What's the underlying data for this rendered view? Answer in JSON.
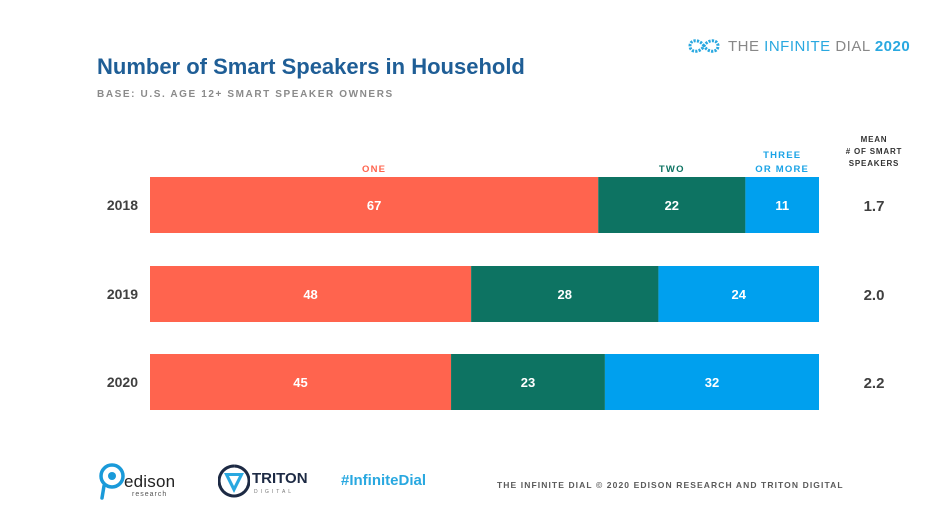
{
  "header": {
    "title": "Number of Smart Speakers in Household",
    "subtitle": "BASE: U.S. AGE 12+ SMART SPEAKER OWNERS",
    "brand": {
      "prefix": "THE ",
      "accent": "INFINITE",
      "suffix": " DIAL",
      "year": "2020"
    }
  },
  "chart_data": {
    "type": "bar",
    "orientation": "horizontal",
    "stacked": true,
    "categories": [
      "2018",
      "2019",
      "2020"
    ],
    "series": [
      {
        "name": "ONE",
        "values": [
          67,
          48,
          45
        ],
        "color": "#ff644e"
      },
      {
        "name": "TWO",
        "values": [
          22,
          28,
          23
        ],
        "color": "#0d7362"
      },
      {
        "name": "THREE OR MORE",
        "values": [
          11,
          24,
          32
        ],
        "color": "#00a0ee"
      }
    ],
    "series_labels": [
      {
        "lines": [
          "ONE"
        ],
        "color": "#ff644e"
      },
      {
        "lines": [
          "TWO"
        ],
        "color": "#0d7362"
      },
      {
        "lines": [
          "THREE",
          "OR MORE"
        ],
        "color": "#1aa3e6"
      }
    ],
    "mean_header": [
      "MEAN",
      "# OF SMART",
      "SPEAKERS"
    ],
    "mean_values": [
      "1.7",
      "2.0",
      "2.2"
    ],
    "xlim": [
      0,
      100
    ],
    "grid": false,
    "legend": "labels above bars"
  },
  "footer": {
    "edison_name": "edison",
    "edison_sub": "research",
    "triton_name": "TRITON",
    "triton_sub": "DIGITAL",
    "hashtag": "#InfiniteDial",
    "copyright": "THE INFINITE DIAL   © 2020 EDISON RESEARCH AND TRITON DIGITAL"
  }
}
